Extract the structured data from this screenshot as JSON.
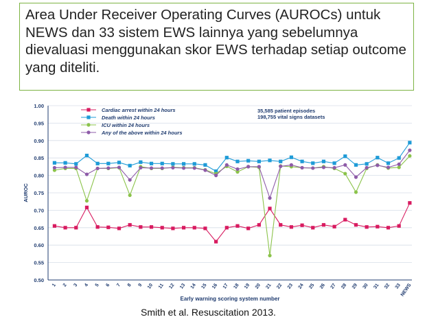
{
  "title": "Area Under Receiver Operating Curves (AUROCs) untuk NEWS dan 33 sistem EWS lainnya yang sebelumnya dievaluasi menggunakan skor EWS terhadap setiap outcome yang diteliti.",
  "source": "Smith et al. Resuscitation 2013.",
  "chart_data": {
    "type": "line",
    "xlabel": "Early warning scoring system number",
    "ylabel": "AUROC",
    "ylim": [
      0.5,
      1.0
    ],
    "ytick_labels": [
      "0.50",
      "0.55",
      "0.60",
      "0.65",
      "0.70",
      "0.75",
      "0.80",
      "0.85",
      "0.90",
      "0.95",
      "1.00"
    ],
    "categories": [
      "1",
      "2",
      "3",
      "4",
      "5",
      "6",
      "7",
      "8",
      "9",
      "10",
      "11",
      "12",
      "13",
      "14",
      "15",
      "16",
      "17",
      "18",
      "19",
      "20",
      "21",
      "22",
      "23",
      "24",
      "25",
      "26",
      "27",
      "28",
      "29",
      "30",
      "31",
      "32",
      "33",
      "NEWS"
    ],
    "grid": true,
    "legend_position": "top-left",
    "annotations": [
      "35,585 patient episodes",
      "198,755 vital signs datasets"
    ],
    "series": [
      {
        "name": "Cardiac arrest within 24 hours",
        "color": "#d81b60",
        "marker": "square",
        "values": [
          0.655,
          0.65,
          0.65,
          0.708,
          0.652,
          0.651,
          0.648,
          0.658,
          0.652,
          0.652,
          0.65,
          0.648,
          0.65,
          0.65,
          0.648,
          0.61,
          0.65,
          0.655,
          0.648,
          0.658,
          0.705,
          0.658,
          0.652,
          0.657,
          0.65,
          0.658,
          0.653,
          0.673,
          0.658,
          0.652,
          0.653,
          0.65,
          0.655,
          0.721
        ]
      },
      {
        "name": "Death within 24 hours",
        "color": "#1e9bd7",
        "marker": "square",
        "values": [
          0.836,
          0.836,
          0.833,
          0.857,
          0.834,
          0.834,
          0.837,
          0.828,
          0.838,
          0.834,
          0.834,
          0.833,
          0.833,
          0.833,
          0.83,
          0.812,
          0.851,
          0.84,
          0.842,
          0.84,
          0.843,
          0.84,
          0.852,
          0.84,
          0.835,
          0.84,
          0.835,
          0.855,
          0.83,
          0.833,
          0.851,
          0.835,
          0.85,
          0.894
        ]
      },
      {
        "name": "ICU within 24 hours",
        "color": "#8bc34a",
        "marker": "circle",
        "values": [
          0.815,
          0.82,
          0.82,
          0.727,
          0.82,
          0.82,
          0.822,
          0.743,
          0.825,
          0.82,
          0.82,
          0.823,
          0.822,
          0.822,
          0.816,
          0.805,
          0.826,
          0.81,
          0.825,
          0.823,
          0.57,
          0.827,
          0.825,
          0.822,
          0.821,
          0.825,
          0.82,
          0.805,
          0.752,
          0.82,
          0.83,
          0.821,
          0.823,
          0.856
        ]
      },
      {
        "name": "Any of the above within 24 hours",
        "color": "#8e5ba8",
        "marker": "circle",
        "values": [
          0.822,
          0.823,
          0.823,
          0.803,
          0.82,
          0.821,
          0.823,
          0.787,
          0.822,
          0.821,
          0.821,
          0.822,
          0.821,
          0.821,
          0.815,
          0.8,
          0.83,
          0.818,
          0.825,
          0.825,
          0.735,
          0.826,
          0.83,
          0.822,
          0.821,
          0.823,
          0.822,
          0.83,
          0.795,
          0.822,
          0.829,
          0.823,
          0.832,
          0.872
        ]
      }
    ]
  }
}
